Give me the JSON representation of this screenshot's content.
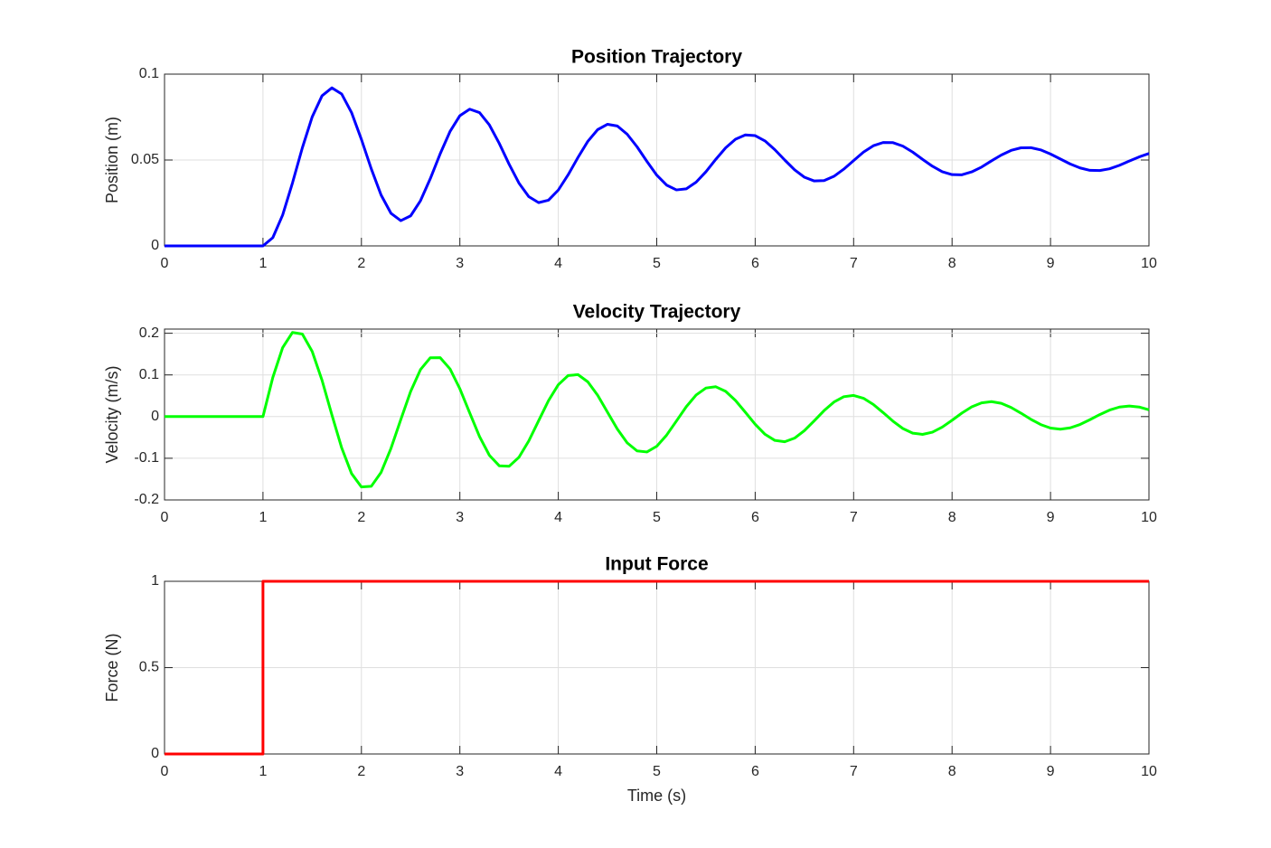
{
  "chart_data": [
    {
      "type": "line",
      "title": "Position Trajectory",
      "ylabel": "Position (m)",
      "color": "#0000ff",
      "grid": true,
      "xlim": [
        0,
        10
      ],
      "xticks": [
        0,
        1,
        2,
        3,
        4,
        5,
        6,
        7,
        8,
        9,
        10
      ],
      "ylim": [
        0,
        0.1
      ],
      "yticks": [
        0,
        0.05,
        0.1
      ],
      "x": [
        0,
        0.1,
        0.2,
        0.3,
        0.4,
        0.5,
        0.6,
        0.7,
        0.8,
        0.9,
        1,
        1.1,
        1.2,
        1.3,
        1.4,
        1.5,
        1.6,
        1.7,
        1.8,
        1.9,
        2,
        2.1,
        2.2,
        2.3,
        2.4,
        2.5,
        2.6,
        2.7,
        2.8,
        2.9,
        3,
        3.1,
        3.2,
        3.3,
        3.4,
        3.5,
        3.6,
        3.7,
        3.8,
        3.9,
        4,
        4.1,
        4.2,
        4.3,
        4.4,
        4.5,
        4.6,
        4.7,
        4.8,
        4.9,
        5,
        5.1,
        5.2,
        5.3,
        5.4,
        5.5,
        5.6,
        5.7,
        5.8,
        5.9,
        6,
        6.1,
        6.2,
        6.3,
        6.4,
        6.5,
        6.6,
        6.7,
        6.8,
        6.9,
        7,
        7.1,
        7.2,
        7.3,
        7.4,
        7.5,
        7.6,
        7.7,
        7.8,
        7.9,
        8,
        8.1,
        8.2,
        8.3,
        8.4,
        8.5,
        8.6,
        8.7,
        8.8,
        8.9,
        9,
        9.1,
        9.2,
        9.3,
        9.4,
        9.5,
        9.6,
        9.7,
        9.8,
        9.9,
        10
      ],
      "values": [
        0,
        0,
        0,
        0,
        0,
        0,
        0,
        0,
        0,
        0,
        0,
        0.0048,
        0.018,
        0.0367,
        0.0571,
        0.0751,
        0.0874,
        0.092,
        0.0884,
        0.0776,
        0.062,
        0.0449,
        0.0296,
        0.019,
        0.0147,
        0.0175,
        0.0263,
        0.0392,
        0.0536,
        0.0666,
        0.0758,
        0.0796,
        0.0776,
        0.0704,
        0.0597,
        0.0476,
        0.0366,
        0.0287,
        0.0252,
        0.0266,
        0.0325,
        0.0414,
        0.0515,
        0.0609,
        0.0677,
        0.0708,
        0.0698,
        0.065,
        0.0577,
        0.0492,
        0.0412,
        0.0354,
        0.0326,
        0.0332,
        0.0371,
        0.0432,
        0.0504,
        0.0571,
        0.0621,
        0.0646,
        0.0642,
        0.0611,
        0.056,
        0.05,
        0.0443,
        0.04,
        0.0378,
        0.038,
        0.0405,
        0.0447,
        0.0497,
        0.0546,
        0.0583,
        0.0602,
        0.0601,
        0.0581,
        0.0546,
        0.0504,
        0.0464,
        0.0432,
        0.0415,
        0.0414,
        0.0431,
        0.0459,
        0.0495,
        0.0529,
        0.0556,
        0.0571,
        0.0572,
        0.0559,
        0.0535,
        0.0506,
        0.0477,
        0.0454,
        0.044,
        0.0439,
        0.0449,
        0.0469,
        0.0494,
        0.0518,
        0.0538
      ]
    },
    {
      "type": "line",
      "title": "Velocity Trajectory",
      "ylabel": "Velocity (m/s)",
      "color": "#00ff00",
      "grid": true,
      "xlim": [
        0,
        10
      ],
      "xticks": [
        0,
        1,
        2,
        3,
        4,
        5,
        6,
        7,
        8,
        9,
        10
      ],
      "ylim": [
        -0.2,
        0.21
      ],
      "yticks": [
        -0.2,
        -0.1,
        0,
        0.1,
        0.2
      ],
      "x": [
        0,
        0.1,
        0.2,
        0.3,
        0.4,
        0.5,
        0.6,
        0.7,
        0.8,
        0.9,
        1,
        1.1,
        1.2,
        1.3,
        1.4,
        1.5,
        1.6,
        1.7,
        1.8,
        1.9,
        2,
        2.1,
        2.2,
        2.3,
        2.4,
        2.5,
        2.6,
        2.7,
        2.8,
        2.9,
        3,
        3.1,
        3.2,
        3.3,
        3.4,
        3.5,
        3.6,
        3.7,
        3.8,
        3.9,
        4,
        4.1,
        4.2,
        4.3,
        4.4,
        4.5,
        4.6,
        4.7,
        4.8,
        4.9,
        5,
        5.1,
        5.2,
        5.3,
        5.4,
        5.5,
        5.6,
        5.7,
        5.8,
        5.9,
        6,
        6.1,
        6.2,
        6.3,
        6.4,
        6.5,
        6.6,
        6.7,
        6.8,
        6.9,
        7,
        7.1,
        7.2,
        7.3,
        7.4,
        7.5,
        7.6,
        7.7,
        7.8,
        7.9,
        8,
        8.1,
        8.2,
        8.3,
        8.4,
        8.5,
        8.6,
        8.7,
        8.8,
        8.9,
        9,
        9.1,
        9.2,
        9.3,
        9.4,
        9.5,
        9.6,
        9.7,
        9.8,
        9.9,
        10
      ],
      "values": [
        0,
        0,
        0,
        0,
        0,
        0,
        0,
        0,
        0,
        0,
        0,
        0.094,
        0.1655,
        0.2019,
        0.198,
        0.1564,
        0.0872,
        0.0042,
        -0.0753,
        -0.1367,
        -0.1689,
        -0.1673,
        -0.1338,
        -0.0764,
        -0.0071,
        0.0602,
        0.1127,
        0.1412,
        0.1413,
        0.1144,
        0.0668,
        0.0089,
        -0.048,
        -0.0929,
        -0.118,
        -0.1193,
        -0.0977,
        -0.0585,
        -0.01,
        0.0381,
        0.0765,
        0.0985,
        0.1007,
        0.0834,
        0.051,
        0.0105,
        -0.0301,
        -0.063,
        -0.0823,
        -0.0849,
        -0.0712,
        -0.0445,
        -0.0106,
        0.0237,
        0.0518,
        0.0686,
        0.0716,
        0.0606,
        0.0386,
        0.0104,
        -0.0185,
        -0.0425,
        -0.0572,
        -0.0603,
        -0.0517,
        -0.0336,
        -0.01,
        0.0144,
        0.0349,
        0.0477,
        0.0508,
        0.044,
        0.0291,
        0.0095,
        -0.0111,
        -0.0286,
        -0.0397,
        -0.0427,
        -0.0374,
        -0.0252,
        -0.0088,
        0.0085,
        0.0234,
        0.033,
        0.0359,
        0.0318,
        0.0218,
        0.0082,
        -0.0064,
        -0.0191,
        -0.0275,
        -0.0302,
        -0.027,
        -0.0189,
        -0.0075,
        0.0048,
        0.0156,
        0.0229,
        0.0254,
        0.023,
        0.0162
      ]
    },
    {
      "type": "line",
      "title": "Input Force",
      "ylabel": "Force (N)",
      "xlabel": "Time (s)",
      "color": "#ff0000",
      "grid": true,
      "xlim": [
        0,
        10
      ],
      "xticks": [
        0,
        1,
        2,
        3,
        4,
        5,
        6,
        7,
        8,
        9,
        10
      ],
      "ylim": [
        0,
        1
      ],
      "yticks": [
        0,
        0.5,
        1
      ],
      "x": [
        0,
        1,
        1,
        10
      ],
      "values": [
        0,
        0,
        1,
        1
      ]
    }
  ]
}
